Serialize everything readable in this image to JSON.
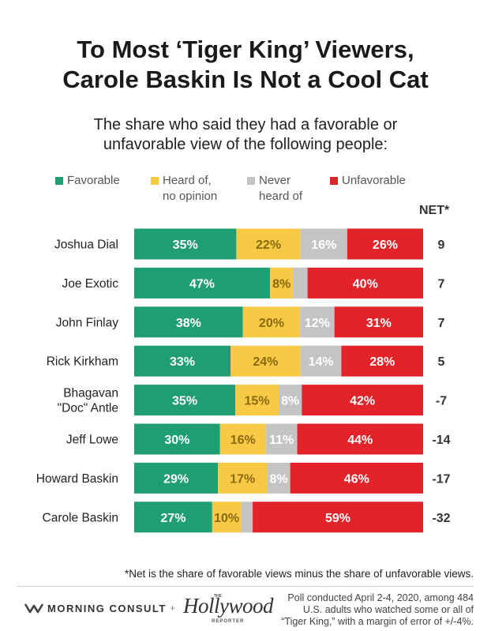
{
  "title_line1": "To Most ‘Tiger King’ Viewers,",
  "title_line2": "Carole Baskin Is Not a Cool Cat",
  "subtitle_line1": "The share who said they had a favorable or",
  "subtitle_line2": "unfavorable view of the following people:",
  "net_header": "NET*",
  "footnote": "*Net is the share of favorable views minus the share of unfavorable views.",
  "footer": {
    "morning_consult": "MORNING CONSULT",
    "plus": "+",
    "hollywood": "Hollywood",
    "hollywood_the": "THE",
    "hollywood_reporter": "REPORTER",
    "poll_line1": "Poll conducted April 2-4, 2020, among 484",
    "poll_line2": "U.S. adults who watched some or all of",
    "poll_line3": "“Tiger King,” with a margin of error of +/-4%."
  },
  "chart_data": {
    "type": "bar",
    "orientation": "horizontal-stacked-100",
    "title": "To Most ‘Tiger King’ Viewers, Carole Baskin Is Not a Cool Cat",
    "categories": [
      [
        "Joshua Dial"
      ],
      [
        "Joe Exotic"
      ],
      [
        "John Finlay"
      ],
      [
        "Rick Kirkham"
      ],
      [
        "Bhagavan",
        "\"Doc\" Antle"
      ],
      [
        "Jeff Lowe"
      ],
      [
        "Howard Baskin"
      ],
      [
        "Carole Baskin"
      ]
    ],
    "series": [
      {
        "name": [
          "Favorable"
        ],
        "color": "#1f9e73",
        "label_color": "#ffffff",
        "values": [
          35,
          47,
          38,
          33,
          35,
          30,
          29,
          27
        ],
        "labels": [
          "35%",
          "47%",
          "38%",
          "33%",
          "35%",
          "30%",
          "29%",
          "27%"
        ]
      },
      {
        "name": [
          "Heard of,",
          "no opinion"
        ],
        "color": "#f7c945",
        "label_color": "#8a6a10",
        "values": [
          22,
          8,
          20,
          24,
          15,
          16,
          17,
          10
        ],
        "labels": [
          "22%",
          "8%",
          "20%",
          "24%",
          "15%",
          "16%",
          "17%",
          "10%"
        ]
      },
      {
        "name": [
          "Never",
          "heard of"
        ],
        "color": "#c4c4c4",
        "label_color": "#ffffff",
        "values": [
          16,
          5,
          12,
          14,
          8,
          11,
          8,
          4
        ],
        "labels": [
          "16%",
          "",
          "12%",
          "14%",
          "8%",
          "11%",
          "8%",
          ""
        ]
      },
      {
        "name": [
          "Unfavorable"
        ],
        "color": "#e3232a",
        "label_color": "#ffffff",
        "values": [
          26,
          40,
          31,
          28,
          42,
          44,
          46,
          59
        ],
        "labels": [
          "26%",
          "40%",
          "31%",
          "28%",
          "42%",
          "44%",
          "46%",
          "59%"
        ]
      }
    ],
    "net": [
      "9",
      "7",
      "7",
      "5",
      "-7",
      "-14",
      "-17",
      "-32"
    ],
    "xlim": [
      0,
      100
    ],
    "grid": false,
    "legend": "top"
  }
}
